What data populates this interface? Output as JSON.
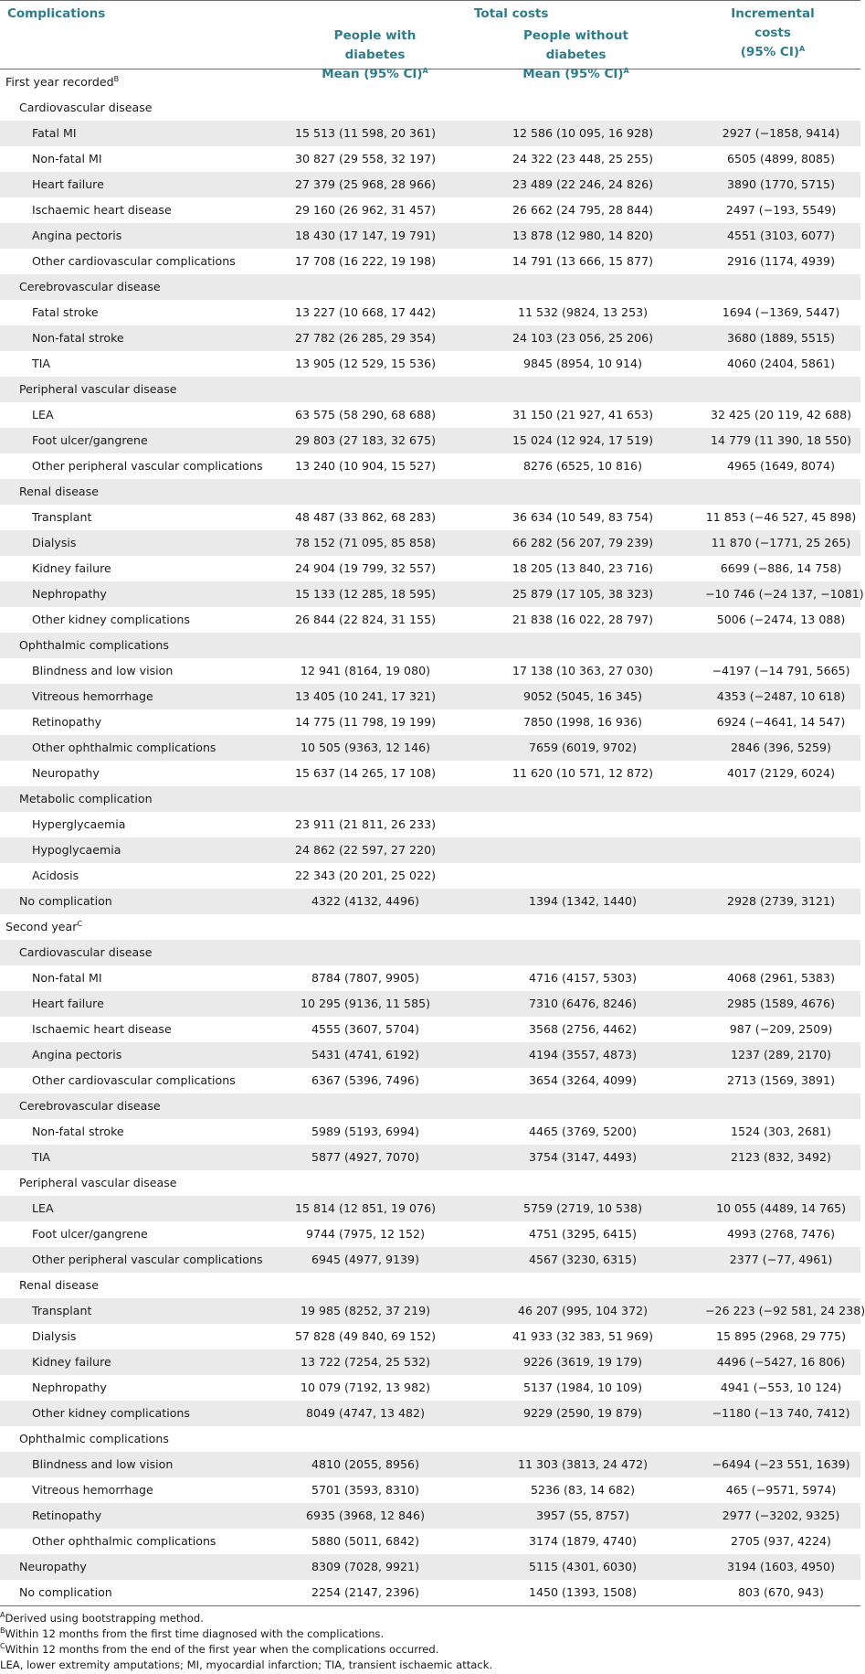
{
  "header": {
    "complications": "Complications",
    "total_costs": "Total costs",
    "with_diabetes_1": "People with diabetes",
    "with_diabetes_2": "Mean (95% CI)",
    "without_diabetes_1": "People without diabetes",
    "without_diabetes_2": "Mean (95% CI)",
    "incremental_1": "Incremental costs",
    "incremental_2": "(95% CI)",
    "sup_a": "A"
  },
  "rows": [
    {
      "label": "First year recorded",
      "sup": "B",
      "level": 0,
      "shade": false,
      "v1": "",
      "v2": "",
      "v3": ""
    },
    {
      "label": "Cardiovascular disease",
      "sup": "",
      "level": 1,
      "shade": false,
      "v1": "",
      "v2": "",
      "v3": ""
    },
    {
      "label": "Fatal MI",
      "sup": "",
      "level": 2,
      "shade": true,
      "v1": "15 513 (11 598, 20 361)",
      "v2": "12 586 (10 095, 16 928)",
      "v3": "2927 (−1858, 9414)"
    },
    {
      "label": "Non-fatal MI",
      "sup": "",
      "level": 2,
      "shade": false,
      "v1": "30 827 (29 558, 32 197)",
      "v2": "24 322 (23 448, 25 255)",
      "v3": "6505 (4899, 8085)"
    },
    {
      "label": "Heart failure",
      "sup": "",
      "level": 2,
      "shade": true,
      "v1": "27 379 (25 968, 28 966)",
      "v2": "23 489 (22 246, 24 826)",
      "v3": "3890 (1770, 5715)"
    },
    {
      "label": "Ischaemic heart disease",
      "sup": "",
      "level": 2,
      "shade": false,
      "v1": "29 160 (26 962, 31 457)",
      "v2": "26 662 (24 795, 28 844)",
      "v3": "2497 (−193, 5549)"
    },
    {
      "label": "Angina pectoris",
      "sup": "",
      "level": 2,
      "shade": true,
      "v1": "18 430 (17 147, 19 791)",
      "v2": "13 878 (12 980, 14 820)",
      "v3": "4551 (3103, 6077)"
    },
    {
      "label": "Other cardiovascular complications",
      "sup": "",
      "level": 2,
      "shade": false,
      "v1": "17 708 (16 222, 19 198)",
      "v2": "14 791 (13 666, 15 877)",
      "v3": "2916 (1174, 4939)"
    },
    {
      "label": "Cerebrovascular disease",
      "sup": "",
      "level": 1,
      "shade": true,
      "v1": "",
      "v2": "",
      "v3": ""
    },
    {
      "label": "Fatal stroke",
      "sup": "",
      "level": 2,
      "shade": false,
      "v1": "13 227 (10 668, 17 442)",
      "v2": "11 532 (9824, 13 253)",
      "v3": "1694 (−1369, 5447)"
    },
    {
      "label": "Non-fatal stroke",
      "sup": "",
      "level": 2,
      "shade": true,
      "v1": "27 782 (26 285, 29 354)",
      "v2": "24 103 (23 056, 25 206)",
      "v3": "3680 (1889, 5515)"
    },
    {
      "label": "TIA",
      "sup": "",
      "level": 2,
      "shade": false,
      "v1": "13 905 (12 529, 15 536)",
      "v2": "9845 (8954, 10 914)",
      "v3": "4060 (2404, 5861)"
    },
    {
      "label": "Peripheral vascular disease",
      "sup": "",
      "level": 1,
      "shade": true,
      "v1": "",
      "v2": "",
      "v3": ""
    },
    {
      "label": "LEA",
      "sup": "",
      "level": 2,
      "shade": false,
      "v1": "63 575 (58 290, 68 688)",
      "v2": "31 150 (21 927, 41 653)",
      "v3": "32 425 (20 119, 42 688)"
    },
    {
      "label": "Foot ulcer/gangrene",
      "sup": "",
      "level": 2,
      "shade": true,
      "v1": "29 803 (27 183, 32 675)",
      "v2": "15 024 (12 924, 17 519)",
      "v3": "14 779 (11 390, 18 550)"
    },
    {
      "label": "Other peripheral vascular complications",
      "sup": "",
      "level": 2,
      "shade": false,
      "v1": "13 240 (10 904, 15 527)",
      "v2": "8276 (6525, 10 816)",
      "v3": "4965 (1649, 8074)"
    },
    {
      "label": "Renal disease",
      "sup": "",
      "level": 1,
      "shade": true,
      "v1": "",
      "v2": "",
      "v3": ""
    },
    {
      "label": "Transplant",
      "sup": "",
      "level": 2,
      "shade": false,
      "v1": "48 487 (33 862, 68 283)",
      "v2": "36 634 (10 549, 83 754)",
      "v3": "11 853 (−46 527, 45 898)"
    },
    {
      "label": "Dialysis",
      "sup": "",
      "level": 2,
      "shade": true,
      "v1": "78 152 (71 095, 85 858)",
      "v2": "66 282 (56 207, 79 239)",
      "v3": "11 870 (−1771, 25 265)"
    },
    {
      "label": "Kidney failure",
      "sup": "",
      "level": 2,
      "shade": false,
      "v1": "24 904 (19 799, 32 557)",
      "v2": "18 205 (13 840, 23 716)",
      "v3": "6699 (−886, 14 758)"
    },
    {
      "label": "Nephropathy",
      "sup": "",
      "level": 2,
      "shade": true,
      "v1": "15 133 (12 285, 18 595)",
      "v2": "25 879 (17 105, 38 323)",
      "v3": "−10 746 (−24 137, −1081)"
    },
    {
      "label": "Other kidney complications",
      "sup": "",
      "level": 2,
      "shade": false,
      "v1": "26 844 (22 824, 31 155)",
      "v2": "21 838 (16 022, 28 797)",
      "v3": "5006 (−2474, 13 088)"
    },
    {
      "label": "Ophthalmic complications",
      "sup": "",
      "level": 1,
      "shade": true,
      "v1": "",
      "v2": "",
      "v3": ""
    },
    {
      "label": "Blindness and low vision",
      "sup": "",
      "level": 2,
      "shade": false,
      "v1": "12 941 (8164, 19 080)",
      "v2": "17 138 (10 363, 27 030)",
      "v3": "−4197 (−14 791, 5665)"
    },
    {
      "label": "Vitreous hemorrhage",
      "sup": "",
      "level": 2,
      "shade": true,
      "v1": "13 405 (10 241, 17 321)",
      "v2": "9052 (5045, 16 345)",
      "v3": "4353 (−2487, 10 618)"
    },
    {
      "label": "Retinopathy",
      "sup": "",
      "level": 2,
      "shade": false,
      "v1": "14 775 (11 798, 19 199)",
      "v2": "7850 (1998, 16 936)",
      "v3": "6924 (−4641, 14 547)"
    },
    {
      "label": "Other ophthalmic complications",
      "sup": "",
      "level": 2,
      "shade": true,
      "v1": "10 505 (9363, 12 146)",
      "v2": "7659 (6019, 9702)",
      "v3": "2846 (396, 5259)"
    },
    {
      "label": "Neuropathy",
      "sup": "",
      "level": 2,
      "shade": false,
      "v1": "15 637 (14 265, 17 108)",
      "v2": "11 620 (10 571, 12 872)",
      "v3": "4017 (2129, 6024)"
    },
    {
      "label": "Metabolic complication",
      "sup": "",
      "level": 1,
      "shade": true,
      "v1": "",
      "v2": "",
      "v3": ""
    },
    {
      "label": "Hyperglycaemia",
      "sup": "",
      "level": 2,
      "shade": false,
      "v1": "23 911 (21 811, 26 233)",
      "v2": "",
      "v3": ""
    },
    {
      "label": "Hypoglycaemia",
      "sup": "",
      "level": 2,
      "shade": true,
      "v1": "24 862 (22 597, 27 220)",
      "v2": "",
      "v3": ""
    },
    {
      "label": "Acidosis",
      "sup": "",
      "level": 2,
      "shade": false,
      "v1": "22 343 (20 201, 25 022)",
      "v2": "",
      "v3": ""
    },
    {
      "label": "No complication",
      "sup": "",
      "level": 1,
      "shade": true,
      "v1": "4322 (4132, 4496)",
      "v2": "1394 (1342, 1440)",
      "v3": "2928 (2739, 3121)"
    },
    {
      "label": "Second year",
      "sup": "C",
      "level": 0,
      "shade": false,
      "v1": "",
      "v2": "",
      "v3": ""
    },
    {
      "label": "Cardiovascular disease",
      "sup": "",
      "level": 1,
      "shade": true,
      "v1": "",
      "v2": "",
      "v3": ""
    },
    {
      "label": "Non-fatal MI",
      "sup": "",
      "level": 2,
      "shade": false,
      "v1": "8784 (7807, 9905)",
      "v2": "4716 (4157, 5303)",
      "v3": "4068 (2961, 5383)"
    },
    {
      "label": "Heart failure",
      "sup": "",
      "level": 2,
      "shade": true,
      "v1": "10 295 (9136, 11 585)",
      "v2": "7310 (6476, 8246)",
      "v3": "2985 (1589, 4676)"
    },
    {
      "label": "Ischaemic heart disease",
      "sup": "",
      "level": 2,
      "shade": false,
      "v1": "4555 (3607, 5704)",
      "v2": "3568 (2756, 4462)",
      "v3": "987 (−209, 2509)"
    },
    {
      "label": "Angina pectoris",
      "sup": "",
      "level": 2,
      "shade": true,
      "v1": "5431 (4741, 6192)",
      "v2": "4194 (3557, 4873)",
      "v3": "1237 (289, 2170)"
    },
    {
      "label": "Other cardiovascular complications",
      "sup": "",
      "level": 2,
      "shade": false,
      "v1": "6367 (5396, 7496)",
      "v2": "3654 (3264, 4099)",
      "v3": "2713 (1569, 3891)"
    },
    {
      "label": "Cerebrovascular disease",
      "sup": "",
      "level": 1,
      "shade": true,
      "v1": "",
      "v2": "",
      "v3": ""
    },
    {
      "label": "Non-fatal stroke",
      "sup": "",
      "level": 2,
      "shade": false,
      "v1": "5989 (5193, 6994)",
      "v2": "4465 (3769, 5200)",
      "v3": "1524 (303, 2681)"
    },
    {
      "label": "TIA",
      "sup": "",
      "level": 2,
      "shade": true,
      "v1": "5877 (4927, 7070)",
      "v2": "3754 (3147, 4493)",
      "v3": "2123 (832, 3492)"
    },
    {
      "label": "Peripheral vascular disease",
      "sup": "",
      "level": 1,
      "shade": false,
      "v1": "",
      "v2": "",
      "v3": ""
    },
    {
      "label": "LEA",
      "sup": "",
      "level": 2,
      "shade": true,
      "v1": "15 814 (12 851, 19 076)",
      "v2": "5759 (2719, 10 538)",
      "v3": "10 055 (4489, 14 765)"
    },
    {
      "label": "Foot ulcer/gangrene",
      "sup": "",
      "level": 2,
      "shade": false,
      "v1": "9744 (7975, 12 152)",
      "v2": "4751 (3295, 6415)",
      "v3": "4993 (2768, 7476)"
    },
    {
      "label": "Other peripheral vascular complications",
      "sup": "",
      "level": 2,
      "shade": true,
      "v1": "6945 (4977, 9139)",
      "v2": "4567 (3230, 6315)",
      "v3": "2377 (−77, 4961)"
    },
    {
      "label": "Renal disease",
      "sup": "",
      "level": 1,
      "shade": false,
      "v1": "",
      "v2": "",
      "v3": ""
    },
    {
      "label": "Transplant",
      "sup": "",
      "level": 2,
      "shade": true,
      "v1": "19 985 (8252, 37 219)",
      "v2": "46 207 (995, 104 372)",
      "v3": "−26 223 (−92 581, 24 238)"
    },
    {
      "label": "Dialysis",
      "sup": "",
      "level": 2,
      "shade": false,
      "v1": "57 828 (49 840, 69 152)",
      "v2": "41 933 (32 383, 51 969)",
      "v3": "15 895 (2968, 29 775)"
    },
    {
      "label": "Kidney failure",
      "sup": "",
      "level": 2,
      "shade": true,
      "v1": "13 722 (7254, 25 532)",
      "v2": "9226 (3619, 19 179)",
      "v3": "4496 (−5427, 16 806)"
    },
    {
      "label": "Nephropathy",
      "sup": "",
      "level": 2,
      "shade": false,
      "v1": "10 079 (7192, 13 982)",
      "v2": "5137 (1984, 10 109)",
      "v3": "4941 (−553, 10 124)"
    },
    {
      "label": "Other kidney complications",
      "sup": "",
      "level": 2,
      "shade": true,
      "v1": "8049 (4747, 13 482)",
      "v2": "9229 (2590, 19 879)",
      "v3": "−1180 (−13 740, 7412)"
    },
    {
      "label": "Ophthalmic complications",
      "sup": "",
      "level": 1,
      "shade": false,
      "v1": "",
      "v2": "",
      "v3": ""
    },
    {
      "label": "Blindness and low vision",
      "sup": "",
      "level": 2,
      "shade": true,
      "v1": "4810 (2055, 8956)",
      "v2": "11 303 (3813, 24 472)",
      "v3": "−6494 (−23 551, 1639)"
    },
    {
      "label": "Vitreous hemorrhage",
      "sup": "",
      "level": 2,
      "shade": false,
      "v1": "5701 (3593, 8310)",
      "v2": "5236 (83, 14 682)",
      "v3": "465 (−9571, 5974)"
    },
    {
      "label": "Retinopathy",
      "sup": "",
      "level": 2,
      "shade": true,
      "v1": "6935 (3968, 12 846)",
      "v2": "3957 (55, 8757)",
      "v3": "2977 (−3202, 9325)"
    },
    {
      "label": "Other ophthalmic complications",
      "sup": "",
      "level": 2,
      "shade": false,
      "v1": "5880 (5011, 6842)",
      "v2": "3174 (1879, 4740)",
      "v3": "2705 (937, 4224)"
    },
    {
      "label": "Neuropathy",
      "sup": "",
      "level": 1,
      "shade": true,
      "v1": "8309 (7028, 9921)",
      "v2": "5115 (4301, 6030)",
      "v3": "3194 (1603, 4950)"
    },
    {
      "label": "No complication",
      "sup": "",
      "level": 1,
      "shade": false,
      "v1": "2254 (2147, 2396)",
      "v2": "1450 (1393, 1508)",
      "v3": "803 (670, 943)"
    }
  ],
  "footnotes": [
    {
      "sup": "A",
      "text": "Derived using bootstrapping method."
    },
    {
      "sup": "B",
      "text": "Within 12 months from the first time diagnosed with the complications."
    },
    {
      "sup": "C",
      "text": "Within 12 months from the end of the first year when the complications occurred."
    },
    {
      "sup": "",
      "text": "LEA, lower extremity amputations; MI, myocardial infarction; TIA, transient ischaemic attack."
    }
  ],
  "colors": {
    "header_text": "#2f7d8c",
    "row_shade": "#eaeaea",
    "rule": "#6e6e6e"
  }
}
